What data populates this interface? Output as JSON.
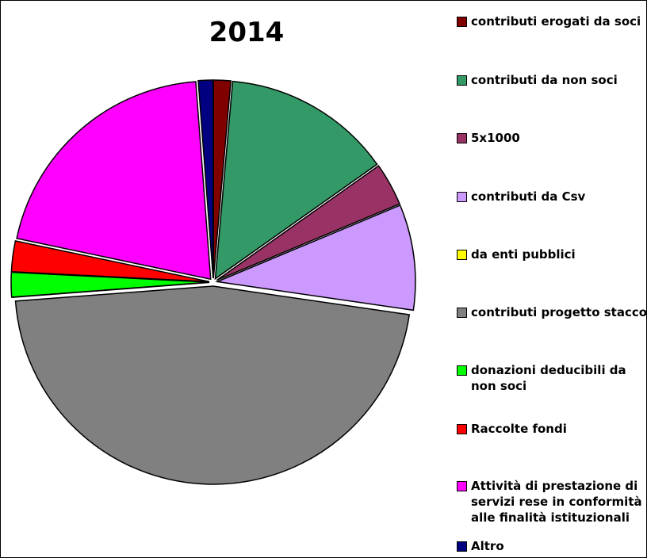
{
  "chart_data": {
    "type": "pie",
    "title": "2014",
    "categories": [
      "contributi erogati da soci",
      "contributi da non soci",
      "5x1000",
      "contributi da Csv",
      "da enti pubblici",
      "contributi progetto stacco",
      "donazioni deducibili da non soci",
      "Raccolte fondi",
      "Attività di prestazione di servizi rese in conformità alle finalità istituzionali",
      "Altro"
    ],
    "values": [
      1.4,
      13.8,
      3.5,
      8.6,
      0,
      46.5,
      2,
      2.5,
      20.5,
      1.2
    ],
    "colors": [
      "#800000",
      "#339966",
      "#993366",
      "#cc99ff",
      "#ffff00",
      "#808080",
      "#00ff00",
      "#ff0000",
      "#ff00ff",
      "#000080"
    ]
  }
}
